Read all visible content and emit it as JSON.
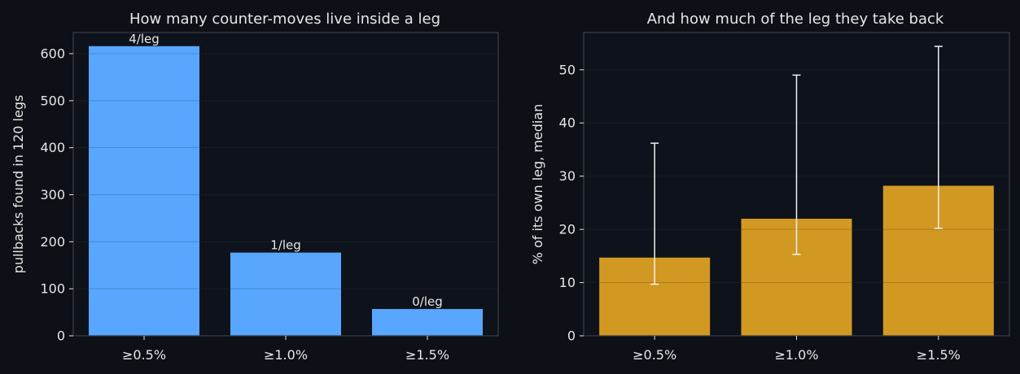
{
  "chart_data": [
    {
      "type": "bar",
      "title": "How many counter-moves live inside a leg",
      "xlabel": "",
      "ylabel": "pullbacks found in 120 legs",
      "categories": [
        "≥0.5%",
        "≥1.0%",
        "≥1.5%"
      ],
      "values": [
        616,
        177,
        57
      ],
      "data_labels": [
        "4/leg",
        "1/leg",
        "0/leg"
      ],
      "yticks": [
        0,
        100,
        200,
        300,
        400,
        500,
        600
      ],
      "ylim": [
        0,
        645
      ],
      "grid": true,
      "bar_color": "#58a6ff"
    },
    {
      "type": "bar",
      "title": "And how much of the leg they take back",
      "xlabel": "",
      "ylabel": "% of its own leg, median",
      "categories": [
        "≥0.5%",
        "≥1.0%",
        "≥1.5%"
      ],
      "values": [
        14.7,
        22.0,
        28.2
      ],
      "error_low": [
        9.7,
        15.3,
        20.2
      ],
      "error_high": [
        36.2,
        49.0,
        54.4
      ],
      "yticks": [
        0,
        10,
        20,
        30,
        40,
        50
      ],
      "ylim": [
        0,
        57
      ],
      "grid": true,
      "bar_color": "#d29922"
    }
  ],
  "colors": {
    "background": "#0d1017",
    "panel": "#0e121a",
    "frame": "#3a3f4a",
    "grid": "#1e232c",
    "text": "#e6e6e6",
    "errorbar": "#f0f0f0"
  }
}
